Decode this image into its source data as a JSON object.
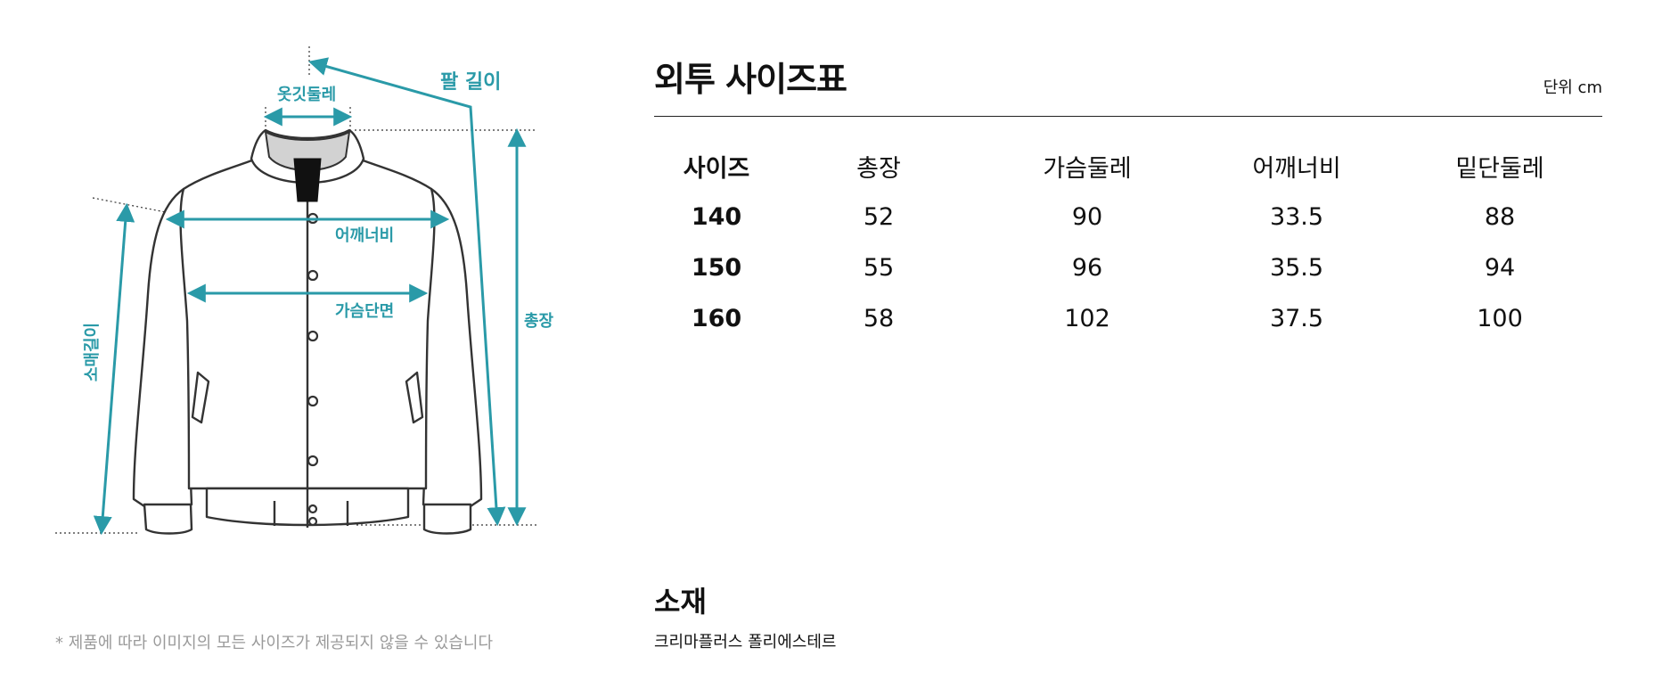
{
  "diagram": {
    "labels": {
      "collar": "옷깃둘레",
      "arm_length": "팔 길이",
      "shoulder": "어깨너비",
      "chest": "가슴단면",
      "total_length": "총장",
      "sleeve": "소매길이"
    },
    "accent_color": "#2a9aa8",
    "disclaimer": "* 제품에 따라 이미지의 모든 사이즈가 제공되지 않을 수 있습니다"
  },
  "size_table": {
    "title": "외투 사이즈표",
    "unit": "단위 cm",
    "headers": [
      "사이즈",
      "총장",
      "가슴둘레",
      "어깨너비",
      "밑단둘레"
    ],
    "rows": [
      [
        "140",
        "52",
        "90",
        "33.5",
        "88"
      ],
      [
        "150",
        "55",
        "96",
        "35.5",
        "94"
      ],
      [
        "160",
        "58",
        "102",
        "37.5",
        "100"
      ]
    ]
  },
  "material": {
    "title": "소재",
    "text": "크리마플러스 폴리에스테르"
  }
}
